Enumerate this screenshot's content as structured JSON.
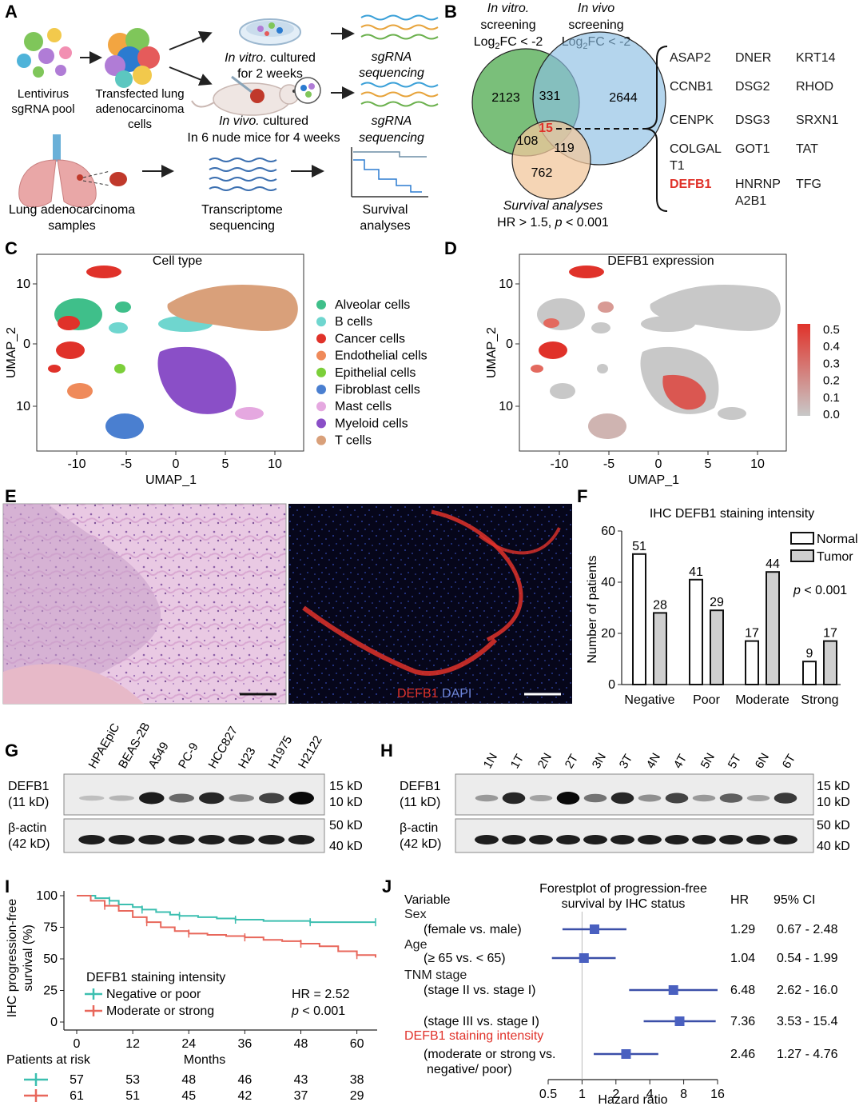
{
  "panels": {
    "A": {
      "letter": "A",
      "lentivirus": [
        "Lentivirus",
        "sgRNA pool"
      ],
      "transfected": [
        "Transfected lung",
        "adenocarcinoma",
        "cells"
      ],
      "invitro": [
        "In vitro.",
        " cultured",
        "for 2 weeks"
      ],
      "invivo": [
        "In vivo.",
        " cultured",
        "In 6 nude mice for 4 weeks"
      ],
      "sgrna": [
        "sgRNA",
        "sequencing"
      ],
      "samples": [
        "Lung adenocarcinoma",
        "samples"
      ],
      "transcriptome": [
        "Transcriptome",
        "sequencing"
      ],
      "survival": [
        "Survival",
        "analyses"
      ]
    },
    "B": {
      "letter": "B",
      "invitro_title": [
        "In vitro.",
        "screening"
      ],
      "invivo_title": [
        "In vivo",
        "screening"
      ],
      "log2fc": "Log",
      "log2fc_tail": "FC < -2",
      "sub2": "2",
      "survival_title": "Survival analyses",
      "hr_label": "HR > 1.5, ",
      "p_sym": "p",
      "p_tail": " < 0.001",
      "counts": {
        "invitro_only": "2123",
        "intersect_ab": "331",
        "invivo_only": "2644",
        "center": "15",
        "ac": "108",
        "bc": "119",
        "survival_only": "762"
      },
      "genes": [
        [
          "ASAP2",
          "DNER",
          "KRT14"
        ],
        [
          "CCNB1",
          "DSG2",
          "RHOD"
        ],
        [
          "CENPK",
          "DSG3",
          "SRXN1"
        ],
        [
          "COLGAL",
          "GOT1",
          "TAT"
        ],
        [
          "T1",
          "",
          ""
        ],
        [
          "DEFB1",
          "HNRNP",
          "TFG"
        ],
        [
          "",
          "A2B1",
          ""
        ]
      ]
    },
    "C": {
      "letter": "C",
      "title": "Cell type",
      "xlabel": "UMAP_1",
      "ylabel": "UMAP_2",
      "xticks": [
        "-10",
        "-5",
        "0",
        "5",
        "10"
      ],
      "yticks": [
        "10",
        "0",
        "10"
      ],
      "legend": [
        {
          "name": "Alveolar cells",
          "color": "#3fbf8a"
        },
        {
          "name": "B cells",
          "color": "#6fd6cf"
        },
        {
          "name": "Cancer cells",
          "color": "#e0322a"
        },
        {
          "name": "Endothelial cells",
          "color": "#ef8a5a"
        },
        {
          "name": "Epithelial cells",
          "color": "#7ccf3a"
        },
        {
          "name": "Fibroblast cells",
          "color": "#4a7fd0"
        },
        {
          "name": "Mast cells",
          "color": "#e5a8e0"
        },
        {
          "name": "Myeloid cells",
          "color": "#8a4fc7"
        },
        {
          "name": "T cells",
          "color": "#d9a07a"
        }
      ]
    },
    "D": {
      "letter": "D",
      "title": "DEFB1 expression",
      "xlabel": "UMAP_1",
      "ylabel": "UMAP_2",
      "xticks": [
        "-10",
        "-5",
        "0",
        "5",
        "10"
      ],
      "yticks": [
        "10",
        "0",
        "10"
      ],
      "scale": [
        "0.5",
        "0.4",
        "0.3",
        "0.2",
        "0.1",
        "0.0"
      ]
    },
    "E": {
      "letter": "E",
      "defb1": "DEFB1",
      "dapi": " DAPI"
    },
    "F": {
      "letter": "F",
      "title": "IHC DEFB1 staining intensity",
      "ylabel": "Number of patients",
      "legend": [
        "Normal",
        "Tumor"
      ],
      "pvalue": "p < 0.001",
      "yticks": [
        "0",
        "20",
        "40",
        "60"
      ]
    },
    "G": {
      "letter": "G",
      "lanes": [
        "HPAEpiC",
        "BEAS-2B",
        "A549",
        "PC-9",
        "HCC827",
        "H23",
        "H1975",
        "H2122"
      ],
      "row1": [
        "DEFB1",
        "(11 kD)"
      ],
      "row2": [
        "β-actin",
        "(42 kD)"
      ],
      "markers": [
        "15 kD",
        "10 kD",
        "50 kD",
        "40 kD"
      ],
      "band_intensity": [
        0.05,
        0.1,
        0.9,
        0.5,
        0.85,
        0.35,
        0.7,
        1.0
      ]
    },
    "H": {
      "letter": "H",
      "lanes": [
        "1N",
        "1T",
        "2N",
        "2T",
        "3N",
        "3T",
        "4N",
        "4T",
        "5N",
        "5T",
        "6N",
        "6T"
      ],
      "row1": [
        "DEFB1",
        "(11 kD)"
      ],
      "row2": [
        "β-actin",
        "(42 kD)"
      ],
      "markers": [
        "15 kD",
        "10 kD",
        "50 kD",
        "40 kD"
      ],
      "band_intensity": [
        0.25,
        0.85,
        0.2,
        1.0,
        0.45,
        0.85,
        0.3,
        0.7,
        0.25,
        0.55,
        0.2,
        0.75
      ]
    },
    "I": {
      "letter": "I",
      "ylabel": [
        "IHC progression-free",
        "survival (%)"
      ],
      "yticks": [
        "0",
        "25",
        "50",
        "75",
        "100"
      ],
      "xticks": [
        "0",
        "12",
        "24",
        "36",
        "48",
        "60"
      ],
      "xlabel": "Months",
      "legend_title": "DEFB1 staining intensity",
      "legend": [
        "Negative or poor",
        "Moderate or strong"
      ],
      "hr": "HR = 2.52",
      "p": "p < 0.001",
      "risk_title": "Patients at risk",
      "risk": [
        [
          "57",
          "53",
          "48",
          "46",
          "43",
          "38"
        ],
        [
          "61",
          "51",
          "45",
          "42",
          "37",
          "29"
        ]
      ]
    },
    "J": {
      "letter": "J",
      "title": [
        "Forestplot of progression-free",
        "survival by IHC status"
      ],
      "col_variable": "Variable",
      "col_hr": "HR",
      "col_ci": "95% CI",
      "xlabel": "Hazard ratio",
      "xticks": [
        "0.5",
        "1",
        "2",
        "4",
        "8",
        "16"
      ],
      "rows": [
        {
          "head": "Sex",
          "sub": "(female vs. male)",
          "hr": "1.29",
          "ci": "0.67 - 2.48"
        },
        {
          "head": "Age",
          "sub": "(≥ 65 vs. < 65)",
          "hr": "1.04",
          "ci": "0.54 - 1.99"
        },
        {
          "head": "TNM stage",
          "sub": "(stage II vs. stage I)",
          "hr": "6.48",
          "ci": "2.62 - 16.0"
        },
        {
          "head": "",
          "sub": "(stage III vs. stage I)",
          "hr": "7.36",
          "ci": "3.53 - 15.4"
        },
        {
          "head": "DEFB1 staining intensity",
          "sub": "(moderate or strong vs.",
          "sub2": "negative/ poor)",
          "hr": "2.46",
          "ci": "1.27 -  4.76"
        }
      ]
    }
  },
  "chart_data": [
    {
      "type": "bar",
      "title": "IHC DEFB1 staining intensity",
      "categories": [
        "Negative",
        "Poor",
        "Moderate",
        "Strong"
      ],
      "series": [
        {
          "name": "Normal",
          "values": [
            51,
            41,
            17,
            9
          ]
        },
        {
          "name": "Tumor",
          "values": [
            28,
            29,
            44,
            17
          ]
        }
      ],
      "ylabel": "Number of patients",
      "ylim": [
        0,
        60
      ]
    },
    {
      "type": "line",
      "xlabel": "Months",
      "ylabel": "IHC progression-free survival (%)",
      "xlim": [
        0,
        64
      ],
      "ylim": [
        0,
        100
      ],
      "series": [
        {
          "name": "Negative or poor",
          "x": [
            0,
            4,
            7,
            9,
            12,
            14,
            17,
            20,
            22,
            26,
            30,
            34,
            40,
            46,
            50,
            55,
            58,
            64
          ],
          "y": [
            100,
            98,
            96,
            93,
            91,
            89,
            87,
            85,
            84,
            83,
            82,
            81,
            80,
            80,
            79,
            79,
            79,
            79
          ]
        },
        {
          "name": "Moderate or strong",
          "x": [
            0,
            3,
            6,
            9,
            12,
            15,
            18,
            21,
            24,
            28,
            32,
            36,
            40,
            44,
            48,
            52,
            56,
            60,
            64
          ],
          "y": [
            100,
            96,
            92,
            88,
            83,
            79,
            75,
            72,
            70,
            69,
            68,
            67,
            65,
            64,
            62,
            60,
            56,
            53,
            51
          ]
        }
      ]
    },
    {
      "type": "scatter",
      "title": "Forestplot of progression-free survival by IHC status",
      "xlabel": "Hazard ratio",
      "log_x": true,
      "categories": [
        "Sex",
        "Age",
        "TNM stage II",
        "TNM stage III",
        "DEFB1 staining intensity"
      ],
      "hr": [
        1.29,
        1.04,
        6.48,
        7.36,
        2.46
      ],
      "ci_low": [
        0.67,
        0.54,
        2.62,
        3.53,
        1.27
      ],
      "ci_high": [
        2.48,
        1.99,
        16.0,
        15.4,
        4.76
      ]
    }
  ]
}
